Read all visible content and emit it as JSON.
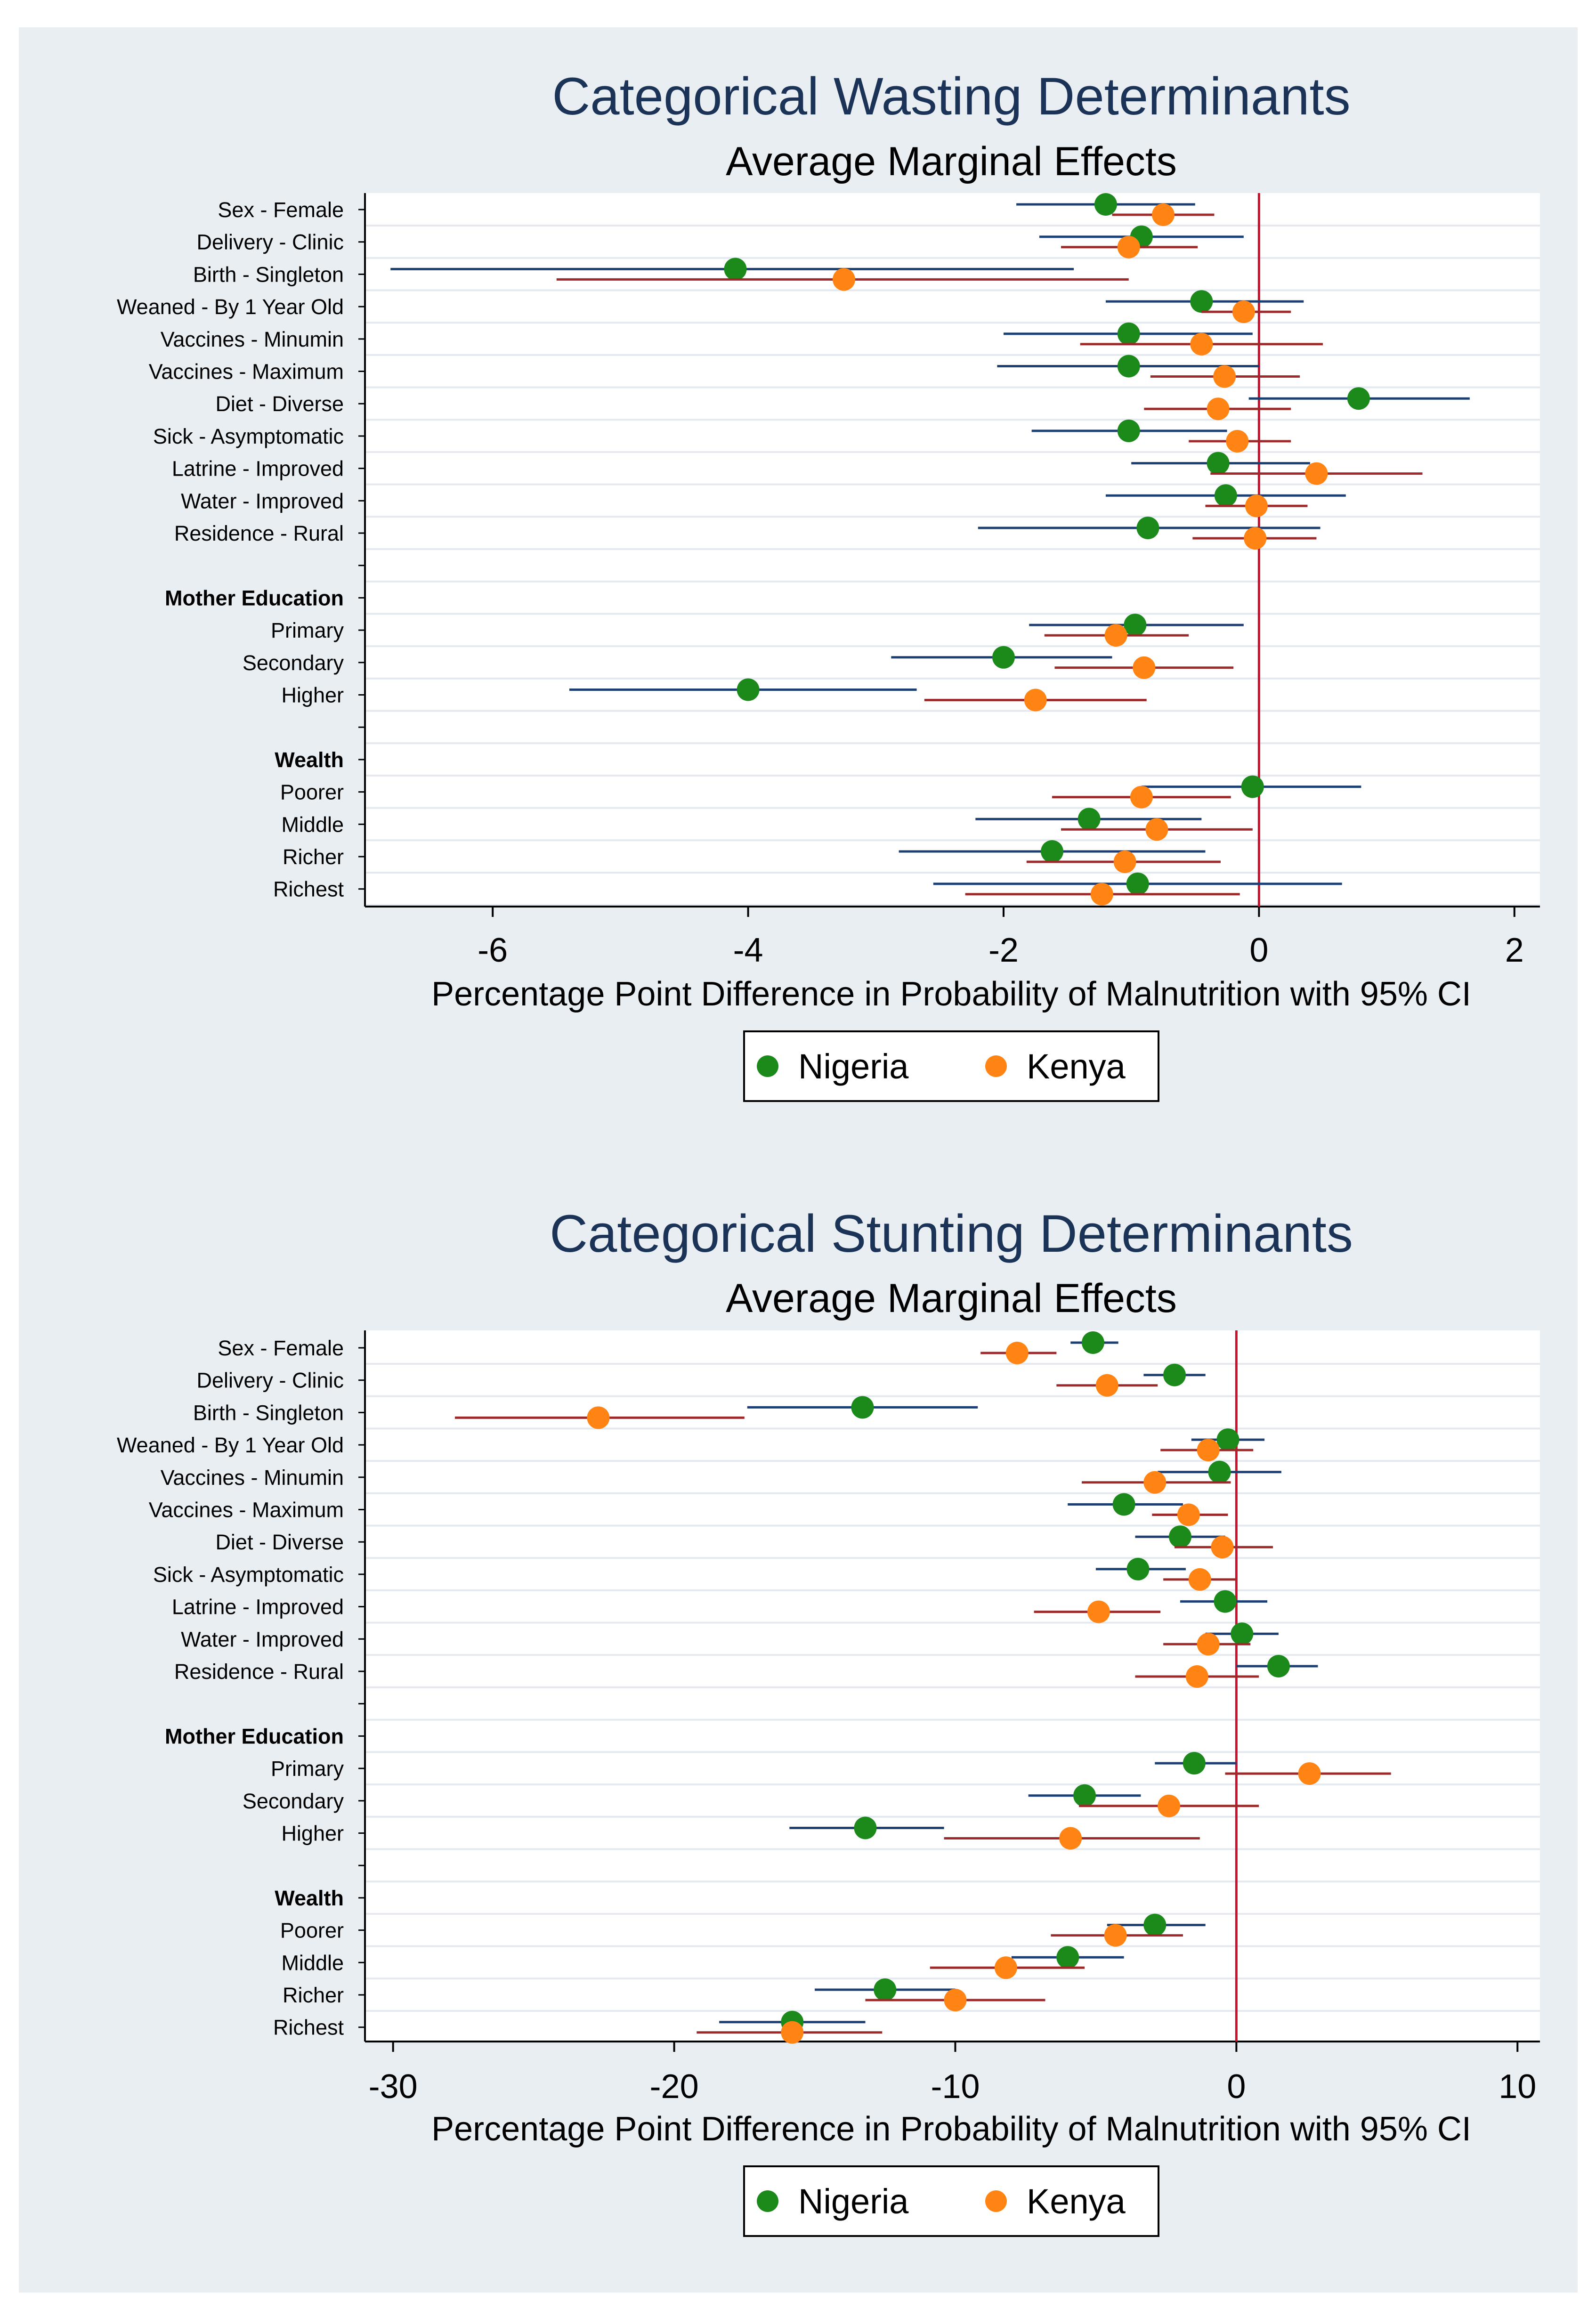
{
  "colors": {
    "nigeria": "#1b8a1b",
    "kenya": "#ff8414",
    "nigeria_ci": "#1b3f73",
    "kenya_ci": "#9c2a2a",
    "zero_line": "#c8102e",
    "background": "#e9eef3",
    "title": "#1b3356"
  },
  "legend": {
    "nigeria": "Nigeria",
    "kenya": "Kenya"
  },
  "chart_data": [
    {
      "type": "scatter",
      "title": "Categorical Wasting Determinants",
      "subtitle": "Average Marginal Effects",
      "xlabel": "Percentage Point Difference in Probability of Malnutrition with 95% CI",
      "xlim": [
        -7,
        2.2
      ],
      "xticks": [
        -6,
        -4,
        -2,
        0,
        2
      ],
      "xtick_labels": [
        "-6",
        "-4",
        "-2",
        "0",
        "2"
      ],
      "rows": [
        {
          "label": "Sex - Female",
          "header": false
        },
        {
          "label": "Delivery - Clinic",
          "header": false
        },
        {
          "label": "Birth - Singleton",
          "header": false
        },
        {
          "label": "Weaned - By 1 Year Old",
          "header": false
        },
        {
          "label": "Vaccines - Minumin",
          "header": false
        },
        {
          "label": "Vaccines - Maximum",
          "header": false
        },
        {
          "label": "Diet - Diverse",
          "header": false
        },
        {
          "label": "Sick - Asymptomatic",
          "header": false
        },
        {
          "label": "Latrine - Improved",
          "header": false
        },
        {
          "label": "Water - Improved",
          "header": false
        },
        {
          "label": "Residence - Rural",
          "header": false
        },
        {
          "label": "",
          "header": true
        },
        {
          "label": "Mother Education",
          "header": true
        },
        {
          "label": "Primary",
          "header": false
        },
        {
          "label": "Secondary",
          "header": false
        },
        {
          "label": "Higher",
          "header": false
        },
        {
          "label": "",
          "header": true
        },
        {
          "label": "Wealth",
          "header": true
        },
        {
          "label": "Poorer",
          "header": false
        },
        {
          "label": "Middle",
          "header": false
        },
        {
          "label": "Richer",
          "header": false
        },
        {
          "label": "Richest",
          "header": false
        }
      ],
      "series": [
        {
          "name": "Nigeria",
          "key": "nigeria",
          "points": [
            {
              "row": 0,
              "est": -1.2,
              "lo": -1.9,
              "hi": -0.5
            },
            {
              "row": 1,
              "est": -0.92,
              "lo": -1.72,
              "hi": -0.12
            },
            {
              "row": 2,
              "est": -4.1,
              "lo": -6.8,
              "hi": -1.45
            },
            {
              "row": 3,
              "est": -0.45,
              "lo": -1.2,
              "hi": 0.35
            },
            {
              "row": 4,
              "est": -1.02,
              "lo": -2.0,
              "hi": -0.05
            },
            {
              "row": 5,
              "est": -1.02,
              "lo": -2.05,
              "hi": 0.0
            },
            {
              "row": 6,
              "est": 0.78,
              "lo": -0.08,
              "hi": 1.65
            },
            {
              "row": 7,
              "est": -1.02,
              "lo": -1.78,
              "hi": -0.25
            },
            {
              "row": 8,
              "est": -0.32,
              "lo": -1.0,
              "hi": 0.4
            },
            {
              "row": 9,
              "est": -0.26,
              "lo": -1.2,
              "hi": 0.68
            },
            {
              "row": 10,
              "est": -0.87,
              "lo": -2.2,
              "hi": 0.48
            },
            {
              "row": 13,
              "est": -0.97,
              "lo": -1.8,
              "hi": -0.12
            },
            {
              "row": 14,
              "est": -2.0,
              "lo": -2.88,
              "hi": -1.15
            },
            {
              "row": 15,
              "est": -4.0,
              "lo": -5.4,
              "hi": -2.68
            },
            {
              "row": 18,
              "est": -0.05,
              "lo": -0.92,
              "hi": 0.8
            },
            {
              "row": 19,
              "est": -1.33,
              "lo": -2.22,
              "hi": -0.45
            },
            {
              "row": 20,
              "est": -1.62,
              "lo": -2.82,
              "hi": -0.42
            },
            {
              "row": 21,
              "est": -0.95,
              "lo": -2.55,
              "hi": 0.65
            }
          ]
        },
        {
          "name": "Kenya",
          "key": "kenya",
          "points": [
            {
              "row": 0,
              "est": -0.75,
              "lo": -1.15,
              "hi": -0.35
            },
            {
              "row": 1,
              "est": -1.02,
              "lo": -1.55,
              "hi": -0.48
            },
            {
              "row": 2,
              "est": -3.25,
              "lo": -5.5,
              "hi": -1.02
            },
            {
              "row": 3,
              "est": -0.12,
              "lo": -0.45,
              "hi": 0.25
            },
            {
              "row": 4,
              "est": -0.45,
              "lo": -1.4,
              "hi": 0.5
            },
            {
              "row": 5,
              "est": -0.27,
              "lo": -0.85,
              "hi": 0.32
            },
            {
              "row": 6,
              "est": -0.32,
              "lo": -0.9,
              "hi": 0.25
            },
            {
              "row": 7,
              "est": -0.17,
              "lo": -0.55,
              "hi": 0.25
            },
            {
              "row": 8,
              "est": 0.45,
              "lo": -0.38,
              "hi": 1.28
            },
            {
              "row": 9,
              "est": -0.02,
              "lo": -0.42,
              "hi": 0.38
            },
            {
              "row": 10,
              "est": -0.03,
              "lo": -0.52,
              "hi": 0.45
            },
            {
              "row": 13,
              "est": -1.12,
              "lo": -1.68,
              "hi": -0.55
            },
            {
              "row": 14,
              "est": -0.9,
              "lo": -1.6,
              "hi": -0.2
            },
            {
              "row": 15,
              "est": -1.75,
              "lo": -2.62,
              "hi": -0.88
            },
            {
              "row": 18,
              "est": -0.92,
              "lo": -1.62,
              "hi": -0.22
            },
            {
              "row": 19,
              "est": -0.8,
              "lo": -1.55,
              "hi": -0.05
            },
            {
              "row": 20,
              "est": -1.05,
              "lo": -1.82,
              "hi": -0.3
            },
            {
              "row": 21,
              "est": -1.23,
              "lo": -2.3,
              "hi": -0.15
            }
          ]
        }
      ]
    },
    {
      "type": "scatter",
      "title": "Categorical Stunting Determinants",
      "subtitle": "Average Marginal Effects",
      "xlabel": "Percentage Point Difference in Probability of Malnutrition with 95% CI",
      "xlim": [
        -31,
        10.8
      ],
      "xticks": [
        -30,
        -20,
        -10,
        0,
        10
      ],
      "xtick_labels": [
        "-30",
        "-20",
        "-10",
        "0",
        "10"
      ],
      "rows": [
        {
          "label": "Sex - Female",
          "header": false
        },
        {
          "label": "Delivery - Clinic",
          "header": false
        },
        {
          "label": "Birth - Singleton",
          "header": false
        },
        {
          "label": "Weaned - By 1 Year Old",
          "header": false
        },
        {
          "label": "Vaccines - Minumin",
          "header": false
        },
        {
          "label": "Vaccines - Maximum",
          "header": false
        },
        {
          "label": "Diet - Diverse",
          "header": false
        },
        {
          "label": "Sick - Asymptomatic",
          "header": false
        },
        {
          "label": "Latrine - Improved",
          "header": false
        },
        {
          "label": "Water - Improved",
          "header": false
        },
        {
          "label": "Residence - Rural",
          "header": false
        },
        {
          "label": "",
          "header": true
        },
        {
          "label": "Mother Education",
          "header": true
        },
        {
          "label": "Primary",
          "header": false
        },
        {
          "label": "Secondary",
          "header": false
        },
        {
          "label": "Higher",
          "header": false
        },
        {
          "label": "",
          "header": true
        },
        {
          "label": "Wealth",
          "header": true
        },
        {
          "label": "Poorer",
          "header": false
        },
        {
          "label": "Middle",
          "header": false
        },
        {
          "label": "Richer",
          "header": false
        },
        {
          "label": "Richest",
          "header": false
        }
      ],
      "series": [
        {
          "name": "Nigeria",
          "key": "nigeria",
          "points": [
            {
              "row": 0,
              "est": -5.1,
              "lo": -5.9,
              "hi": -4.2
            },
            {
              "row": 1,
              "est": -2.2,
              "lo": -3.3,
              "hi": -1.1
            },
            {
              "row": 2,
              "est": -13.3,
              "lo": -17.4,
              "hi": -9.2
            },
            {
              "row": 3,
              "est": -0.3,
              "lo": -1.6,
              "hi": 1.0
            },
            {
              "row": 4,
              "est": -0.6,
              "lo": -2.8,
              "hi": 1.6
            },
            {
              "row": 5,
              "est": -4.0,
              "lo": -6.0,
              "hi": -1.9
            },
            {
              "row": 6,
              "est": -2.0,
              "lo": -3.6,
              "hi": -0.4
            },
            {
              "row": 7,
              "est": -3.5,
              "lo": -5.0,
              "hi": -1.8
            },
            {
              "row": 8,
              "est": -0.4,
              "lo": -2.0,
              "hi": 1.1
            },
            {
              "row": 9,
              "est": 0.2,
              "lo": -1.1,
              "hi": 1.5
            },
            {
              "row": 10,
              "est": 1.5,
              "lo": 0.0,
              "hi": 2.9
            },
            {
              "row": 13,
              "est": -1.5,
              "lo": -2.9,
              "hi": 0.0
            },
            {
              "row": 14,
              "est": -5.4,
              "lo": -7.4,
              "hi": -3.4
            },
            {
              "row": 15,
              "est": -13.2,
              "lo": -15.9,
              "hi": -10.4
            },
            {
              "row": 18,
              "est": -2.9,
              "lo": -4.6,
              "hi": -1.1
            },
            {
              "row": 19,
              "est": -6.0,
              "lo": -8.0,
              "hi": -4.0
            },
            {
              "row": 20,
              "est": -12.5,
              "lo": -15.0,
              "hi": -10.0
            },
            {
              "row": 21,
              "est": -15.8,
              "lo": -18.4,
              "hi": -13.2
            }
          ]
        },
        {
          "name": "Kenya",
          "key": "kenya",
          "points": [
            {
              "row": 0,
              "est": -7.8,
              "lo": -9.1,
              "hi": -6.4
            },
            {
              "row": 1,
              "est": -4.6,
              "lo": -6.4,
              "hi": -2.8
            },
            {
              "row": 2,
              "est": -22.7,
              "lo": -27.8,
              "hi": -17.5
            },
            {
              "row": 3,
              "est": -1.0,
              "lo": -2.7,
              "hi": 0.6
            },
            {
              "row": 4,
              "est": -2.9,
              "lo": -5.5,
              "hi": -0.2
            },
            {
              "row": 5,
              "est": -1.7,
              "lo": -3.0,
              "hi": -0.3
            },
            {
              "row": 6,
              "est": -0.5,
              "lo": -2.2,
              "hi": 1.3
            },
            {
              "row": 7,
              "est": -1.3,
              "lo": -2.6,
              "hi": 0.0
            },
            {
              "row": 8,
              "est": -4.9,
              "lo": -7.2,
              "hi": -2.7
            },
            {
              "row": 9,
              "est": -1.0,
              "lo": -2.6,
              "hi": 0.5
            },
            {
              "row": 10,
              "est": -1.4,
              "lo": -3.6,
              "hi": 0.8
            },
            {
              "row": 13,
              "est": 2.6,
              "lo": -0.4,
              "hi": 5.5
            },
            {
              "row": 14,
              "est": -2.4,
              "lo": -5.6,
              "hi": 0.8
            },
            {
              "row": 15,
              "est": -5.9,
              "lo": -10.4,
              "hi": -1.3
            },
            {
              "row": 18,
              "est": -4.3,
              "lo": -6.6,
              "hi": -1.9
            },
            {
              "row": 19,
              "est": -8.2,
              "lo": -10.9,
              "hi": -5.4
            },
            {
              "row": 20,
              "est": -10.0,
              "lo": -13.2,
              "hi": -6.8
            },
            {
              "row": 21,
              "est": -15.8,
              "lo": -19.2,
              "hi": -12.6
            }
          ]
        }
      ]
    }
  ]
}
